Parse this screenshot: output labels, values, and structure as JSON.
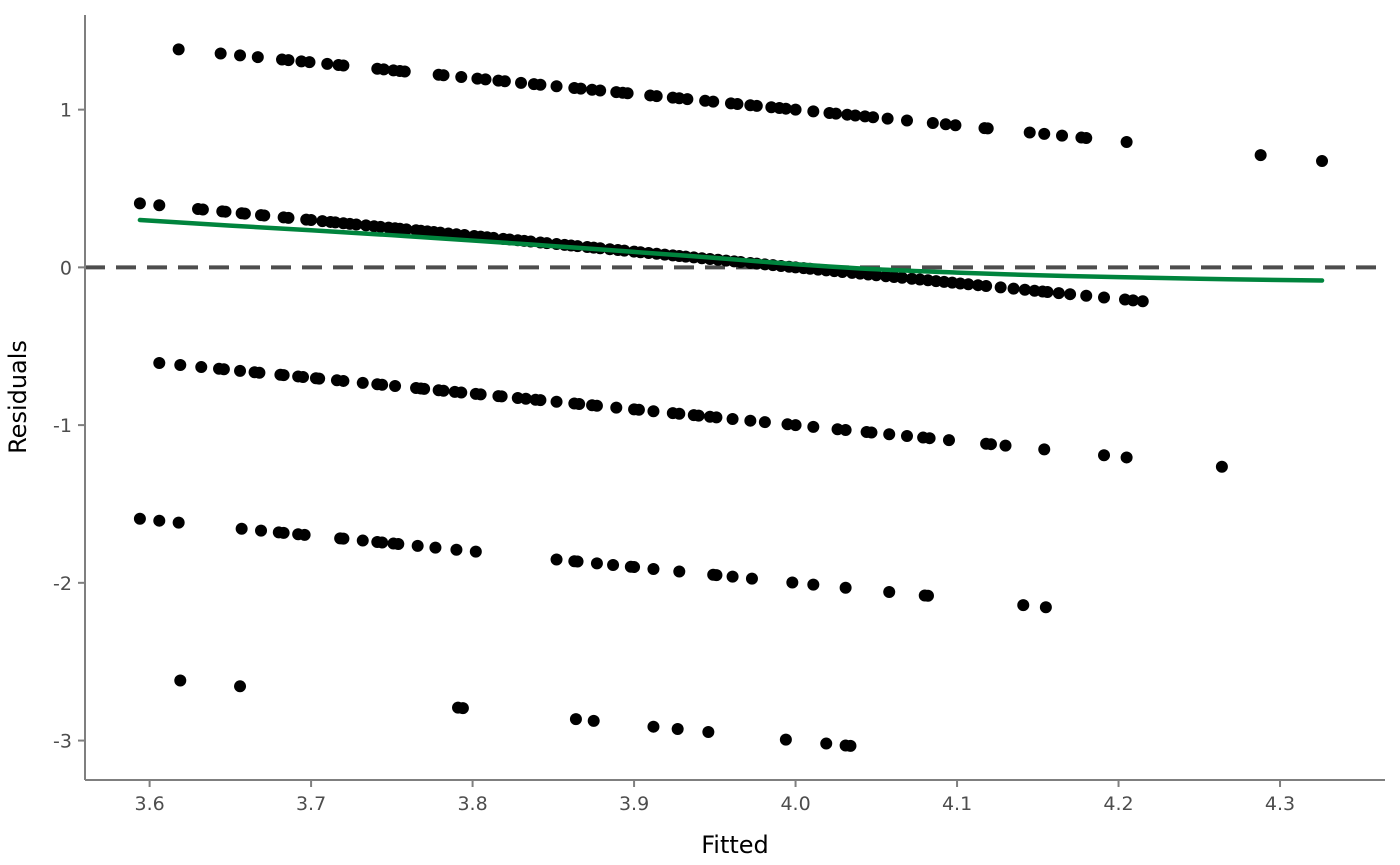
{
  "chart_data": {
    "type": "scatter",
    "xlabel": "Fitted",
    "ylabel": "Residuals",
    "xlim": [
      3.56,
      4.365
    ],
    "ylim": [
      -3.25,
      1.6
    ],
    "x_ticks": [
      "3.6",
      "3.7",
      "3.8",
      "3.9",
      "4.0",
      "4.1",
      "4.2",
      "4.3"
    ],
    "y_ticks": [
      "-3",
      "-2",
      "-1",
      "0",
      "1"
    ],
    "grid": false,
    "legend": "none",
    "colors": {
      "points": "#000000",
      "smooth": "#00843d",
      "reference": "#4d4d4d",
      "axis": "#7f7f7f"
    },
    "reference_line": {
      "y": 0,
      "style": "dashed"
    },
    "bands": [
      {
        "residual_at_x4": 1.0,
        "x": [
          3.618,
          3.644,
          3.656,
          3.667,
          3.682,
          3.686,
          3.694,
          3.699,
          3.71,
          3.717,
          3.72,
          3.741,
          3.745,
          3.751,
          3.755,
          3.758,
          3.779,
          3.782,
          3.793,
          3.803,
          3.808,
          3.816,
          3.82,
          3.83,
          3.838,
          3.842,
          3.852,
          3.863,
          3.867,
          3.874,
          3.879,
          3.889,
          3.893,
          3.896,
          3.91,
          3.914,
          3.924,
          3.928,
          3.933,
          3.944,
          3.949,
          3.96,
          3.964,
          3.972,
          3.976,
          3.985,
          3.99,
          3.994,
          4.0,
          4.011,
          4.021,
          4.025,
          4.032,
          4.037,
          4.043,
          4.048,
          4.057,
          4.069,
          4.085,
          4.093,
          4.099,
          4.117,
          4.119,
          4.145,
          4.154,
          4.165,
          4.177,
          4.18,
          4.205,
          4.288,
          4.326
        ]
      },
      {
        "residual_at_x4": 0.0,
        "x": [
          3.594,
          3.606,
          3.63,
          3.633,
          3.645,
          3.647,
          3.657,
          3.659,
          3.669,
          3.671,
          3.683,
          3.686,
          3.697,
          3.7,
          3.707,
          3.712,
          3.715,
          3.72,
          3.724,
          3.728,
          3.734,
          3.739,
          3.743,
          3.748,
          3.752,
          3.755,
          3.759,
          3.765,
          3.768,
          3.772,
          3.776,
          3.78,
          3.785,
          3.79,
          3.795,
          3.801,
          3.805,
          3.809,
          3.813,
          3.819,
          3.823,
          3.828,
          3.832,
          3.836,
          3.842,
          3.846,
          3.852,
          3.857,
          3.861,
          3.865,
          3.871,
          3.875,
          3.879,
          3.885,
          3.89,
          3.894,
          3.9,
          3.904,
          3.909,
          3.914,
          3.919,
          3.924,
          3.928,
          3.932,
          3.937,
          3.942,
          3.947,
          3.952,
          3.957,
          3.962,
          3.966,
          3.972,
          3.976,
          3.981,
          3.986,
          3.991,
          3.996,
          4.0,
          4.005,
          4.009,
          4.014,
          4.019,
          4.024,
          4.029,
          4.035,
          4.04,
          4.045,
          4.05,
          4.056,
          4.061,
          4.066,
          4.072,
          4.077,
          4.082,
          4.087,
          4.092,
          4.097,
          4.102,
          4.107,
          4.113,
          4.118,
          4.127,
          4.135,
          4.142,
          4.148,
          4.153,
          4.156,
          4.163,
          4.17,
          4.18,
          4.191,
          4.204,
          4.209,
          4.215
        ]
      },
      {
        "residual_at_x4": -1.0,
        "x": [
          3.606,
          3.619,
          3.632,
          3.643,
          3.646,
          3.656,
          3.665,
          3.668,
          3.681,
          3.683,
          3.692,
          3.695,
          3.703,
          3.705,
          3.716,
          3.72,
          3.732,
          3.741,
          3.744,
          3.752,
          3.765,
          3.768,
          3.77,
          3.779,
          3.782,
          3.789,
          3.793,
          3.802,
          3.805,
          3.816,
          3.818,
          3.828,
          3.833,
          3.839,
          3.842,
          3.852,
          3.863,
          3.866,
          3.874,
          3.877,
          3.889,
          3.9,
          3.903,
          3.912,
          3.924,
          3.928,
          3.937,
          3.94,
          3.947,
          3.951,
          3.961,
          3.972,
          3.981,
          3.995,
          4.0,
          4.011,
          4.026,
          4.031,
          4.044,
          4.047,
          4.058,
          4.069,
          4.079,
          4.083,
          4.095,
          4.118,
          4.121,
          4.13,
          4.154,
          4.191,
          4.205,
          4.264
        ]
      },
      {
        "residual_at_x4": -2.0,
        "x": [
          3.594,
          3.606,
          3.618,
          3.657,
          3.669,
          3.68,
          3.683,
          3.692,
          3.696,
          3.718,
          3.72,
          3.732,
          3.741,
          3.744,
          3.751,
          3.754,
          3.766,
          3.777,
          3.79,
          3.802,
          3.852,
          3.863,
          3.865,
          3.877,
          3.887,
          3.898,
          3.9,
          3.912,
          3.928,
          3.949,
          3.951,
          3.961,
          3.973,
          3.998,
          4.011,
          4.031,
          4.058,
          4.08,
          4.082,
          4.141,
          4.155
        ]
      },
      {
        "residual_at_x4": -3.0,
        "x": [
          3.619,
          3.656,
          3.791,
          3.794,
          3.864,
          3.875,
          3.912,
          3.927,
          3.946,
          3.994,
          4.019,
          4.031,
          4.034
        ]
      }
    ],
    "series": [
      {
        "type": "line",
        "smooth": true,
        "x": [
          3.594,
          3.65,
          3.7,
          3.75,
          3.8,
          3.85,
          3.9,
          3.95,
          4.0,
          4.05,
          4.1,
          4.15,
          4.2,
          4.25,
          4.3,
          4.326
        ],
        "y": [
          0.3,
          0.265,
          0.235,
          0.204,
          0.17,
          0.135,
          0.098,
          0.06,
          0.02,
          -0.012,
          -0.033,
          -0.05,
          -0.062,
          -0.072,
          -0.08,
          -0.083
        ]
      }
    ]
  }
}
